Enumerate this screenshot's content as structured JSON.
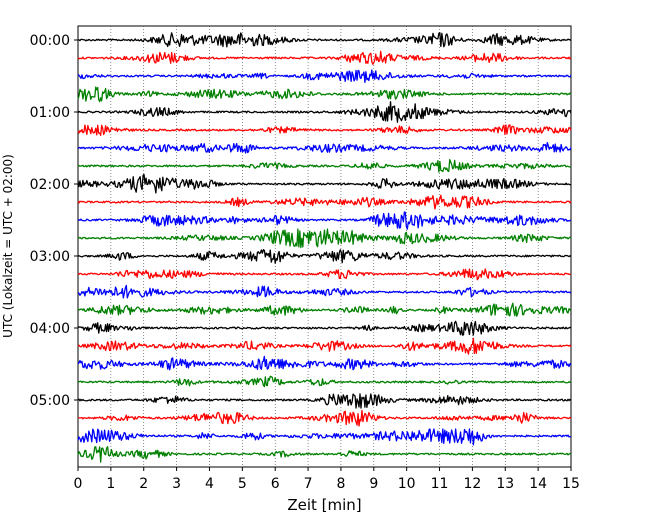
{
  "chart_data": {
    "type": "line",
    "title": "",
    "xlabel": "Zeit  [min]",
    "ylabel": "UTC (Lokalzeit = UTC + 02:00)",
    "xlim": [
      0,
      15
    ],
    "x_ticks": [
      "0",
      "1",
      "2",
      "3",
      "4",
      "5",
      "6",
      "7",
      "8",
      "9",
      "10",
      "11",
      "12",
      "13",
      "14",
      "15"
    ],
    "y_tick_labels": [
      "00:00",
      "01:00",
      "02:00",
      "03:00",
      "04:00",
      "05:00"
    ],
    "row_interval_minutes": 15,
    "rows_count": 24,
    "grid": "vertical dotted",
    "row_colors": [
      "#000000",
      "#ff0000",
      "#0000ff",
      "#008000"
    ]
  }
}
